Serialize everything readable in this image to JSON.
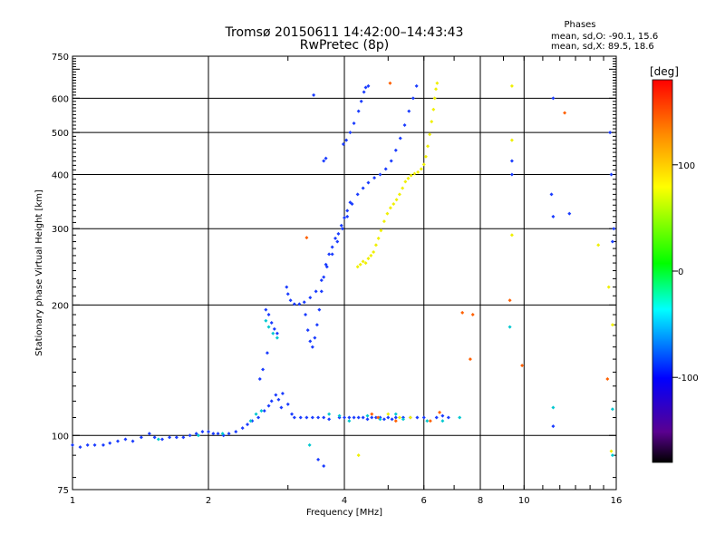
{
  "chart_data": {
    "type": "scatter",
    "title": "Tromsø 20150611 14:42:00–14:43:43",
    "subtitle": "RwPretec (8p)",
    "xlabel": "Frequency [MHz]",
    "ylabel": "Stationary phase Virtual Height [km]",
    "x_scale": "log",
    "y_scale": "log",
    "xlim": [
      1,
      16
    ],
    "ylim": [
      75,
      750
    ],
    "x_ticks": [
      1,
      2,
      4,
      6,
      8,
      10,
      16
    ],
    "x_tick_labels": [
      "1",
      "2",
      "4",
      "6",
      "8",
      "10",
      "16"
    ],
    "y_ticks": [
      75,
      100,
      200,
      300,
      400,
      500,
      600,
      750
    ],
    "y_tick_labels": [
      "75",
      "100",
      "200",
      "300",
      "400",
      "500",
      "600",
      "750"
    ],
    "x_gridlines": [
      2,
      4,
      6,
      8,
      10
    ],
    "y_gridlines": [
      100,
      200,
      300,
      400,
      500,
      600
    ],
    "legend": {
      "title": "Phases",
      "lines": [
        "mean, sd,O: -90.1, 15.6",
        "mean, sd,X:  89.5, 18.6"
      ]
    },
    "colorbar": {
      "label": "[deg]",
      "ticks": [
        100,
        0,
        -100
      ],
      "tick_labels": [
        "100",
        "0",
        "-100"
      ],
      "range": [
        -180,
        180
      ]
    },
    "series": [
      {
        "mode": "O",
        "phase": -100,
        "color": "#1a3cff",
        "points": [
          [
            1.0,
            95
          ],
          [
            1.04,
            94
          ],
          [
            1.08,
            95
          ],
          [
            1.12,
            95
          ],
          [
            1.17,
            95
          ],
          [
            1.21,
            96
          ],
          [
            1.26,
            97
          ],
          [
            1.31,
            98
          ],
          [
            1.36,
            97
          ],
          [
            1.42,
            99
          ],
          [
            1.48,
            101
          ],
          [
            1.52,
            99
          ],
          [
            1.58,
            98
          ],
          [
            1.64,
            99
          ],
          [
            1.7,
            99
          ],
          [
            1.76,
            99
          ],
          [
            1.82,
            100
          ],
          [
            1.88,
            101
          ],
          [
            1.94,
            102
          ],
          [
            2.0,
            102
          ],
          [
            2.05,
            101
          ],
          [
            2.1,
            101
          ],
          [
            2.16,
            100
          ],
          [
            2.22,
            101
          ],
          [
            2.3,
            102
          ],
          [
            2.38,
            104
          ],
          [
            2.44,
            106
          ],
          [
            2.5,
            108
          ],
          [
            2.58,
            110
          ],
          [
            2.66,
            114
          ],
          [
            2.72,
            117
          ],
          [
            2.76,
            120
          ],
          [
            2.82,
            124
          ],
          [
            2.86,
            121
          ],
          [
            2.9,
            116
          ],
          [
            2.6,
            135
          ],
          [
            2.64,
            142
          ],
          [
            2.7,
            155
          ],
          [
            2.68,
            195
          ],
          [
            2.72,
            190
          ],
          [
            2.76,
            182
          ],
          [
            2.8,
            176
          ],
          [
            2.84,
            172
          ],
          [
            2.98,
            220
          ],
          [
            3.0,
            212
          ],
          [
            3.04,
            205
          ],
          [
            3.1,
            201
          ],
          [
            3.18,
            201
          ],
          [
            3.26,
            203
          ],
          [
            3.36,
            208
          ],
          [
            3.46,
            215
          ],
          [
            3.56,
            228
          ],
          [
            3.66,
            245
          ],
          [
            3.76,
            262
          ],
          [
            3.86,
            280
          ],
          [
            3.96,
            300
          ],
          [
            4.06,
            320
          ],
          [
            4.16,
            342
          ],
          [
            4.28,
            360
          ],
          [
            4.4,
            372
          ],
          [
            4.52,
            383
          ],
          [
            4.66,
            393
          ],
          [
            4.8,
            400
          ],
          [
            4.94,
            412
          ],
          [
            5.08,
            430
          ],
          [
            5.2,
            455
          ],
          [
            5.32,
            485
          ],
          [
            5.44,
            520
          ],
          [
            5.56,
            560
          ],
          [
            5.68,
            600
          ],
          [
            5.78,
            640
          ],
          [
            3.28,
            190
          ],
          [
            3.32,
            175
          ],
          [
            3.36,
            165
          ],
          [
            3.4,
            160
          ],
          [
            3.44,
            168
          ],
          [
            3.48,
            180
          ],
          [
            3.52,
            195
          ],
          [
            3.56,
            215
          ],
          [
            3.6,
            232
          ],
          [
            3.64,
            248
          ],
          [
            3.7,
            262
          ],
          [
            3.76,
            272
          ],
          [
            3.82,
            285
          ],
          [
            3.88,
            292
          ],
          [
            3.94,
            305
          ],
          [
            4.0,
            318
          ],
          [
            4.06,
            330
          ],
          [
            4.12,
            345
          ],
          [
            3.6,
            430
          ],
          [
            3.64,
            436
          ],
          [
            3.98,
            470
          ],
          [
            4.04,
            480
          ],
          [
            4.12,
            500
          ],
          [
            4.2,
            525
          ],
          [
            4.3,
            560
          ],
          [
            4.36,
            590
          ],
          [
            4.42,
            620
          ],
          [
            4.46,
            635
          ],
          [
            4.52,
            640
          ],
          [
            3.42,
            610
          ],
          [
            3.1,
            110
          ],
          [
            3.2,
            110
          ],
          [
            3.3,
            110
          ],
          [
            3.4,
            110
          ],
          [
            3.5,
            110
          ],
          [
            3.6,
            110
          ],
          [
            3.7,
            109
          ],
          [
            3.9,
            110
          ],
          [
            4.0,
            110
          ],
          [
            4.1,
            110
          ],
          [
            4.2,
            110
          ],
          [
            4.3,
            110
          ],
          [
            4.4,
            110
          ],
          [
            4.5,
            109
          ],
          [
            4.6,
            110
          ],
          [
            4.7,
            110
          ],
          [
            4.8,
            110
          ],
          [
            4.9,
            109
          ],
          [
            5.0,
            110
          ],
          [
            5.1,
            109
          ],
          [
            5.2,
            110
          ],
          [
            5.4,
            110
          ],
          [
            5.6,
            110
          ],
          [
            5.8,
            110
          ],
          [
            6.0,
            110
          ],
          [
            6.4,
            110
          ],
          [
            6.6,
            111
          ],
          [
            6.8,
            110
          ],
          [
            2.92,
            125
          ],
          [
            3.0,
            118
          ],
          [
            3.06,
            112
          ],
          [
            9.4,
            430
          ],
          [
            9.4,
            400
          ],
          [
            11.6,
            600
          ],
          [
            11.5,
            360
          ],
          [
            11.6,
            320
          ],
          [
            12.6,
            325
          ],
          [
            15.5,
            500
          ],
          [
            15.6,
            400
          ],
          [
            15.8,
            300
          ],
          [
            15.7,
            280
          ],
          [
            11.6,
            105
          ],
          [
            3.5,
            88
          ],
          [
            3.6,
            85
          ]
        ]
      },
      {
        "mode": "X",
        "phase": 90,
        "color": "#f0f000",
        "points": [
          [
            4.28,
            245
          ],
          [
            4.34,
            248
          ],
          [
            4.4,
            252
          ],
          [
            4.46,
            250
          ],
          [
            4.52,
            256
          ],
          [
            4.58,
            260
          ],
          [
            4.64,
            265
          ],
          [
            4.7,
            275
          ],
          [
            4.76,
            285
          ],
          [
            4.82,
            297
          ],
          [
            4.9,
            312
          ],
          [
            4.98,
            325
          ],
          [
            5.06,
            335
          ],
          [
            5.14,
            342
          ],
          [
            5.22,
            350
          ],
          [
            5.3,
            360
          ],
          [
            5.38,
            372
          ],
          [
            5.46,
            385
          ],
          [
            5.54,
            392
          ],
          [
            5.62,
            398
          ],
          [
            5.72,
            402
          ],
          [
            5.82,
            405
          ],
          [
            5.92,
            412
          ],
          [
            6.0,
            422
          ],
          [
            6.06,
            440
          ],
          [
            6.12,
            465
          ],
          [
            6.18,
            495
          ],
          [
            6.24,
            530
          ],
          [
            6.3,
            565
          ],
          [
            6.34,
            600
          ],
          [
            6.38,
            630
          ],
          [
            6.42,
            650
          ],
          [
            5.0,
            112
          ],
          [
            5.3,
            110
          ],
          [
            5.6,
            110
          ],
          [
            9.4,
            640
          ],
          [
            9.4,
            480
          ],
          [
            9.4,
            290
          ],
          [
            14.6,
            275
          ],
          [
            15.4,
            220
          ],
          [
            15.7,
            180
          ],
          [
            15.6,
            92
          ],
          [
            4.3,
            90
          ]
        ]
      },
      {
        "mode": "other",
        "phase": 0,
        "color": "#00c8d0",
        "points": [
          [
            1.55,
            98
          ],
          [
            1.9,
            100
          ],
          [
            2.15,
            101
          ],
          [
            2.48,
            108
          ],
          [
            2.55,
            112
          ],
          [
            2.62,
            114
          ],
          [
            2.68,
            184
          ],
          [
            2.72,
            178
          ],
          [
            2.78,
            172
          ],
          [
            2.84,
            168
          ],
          [
            3.35,
            95
          ],
          [
            3.7,
            112
          ],
          [
            3.9,
            111
          ],
          [
            4.1,
            108
          ],
          [
            4.5,
            111
          ],
          [
            4.8,
            109
          ],
          [
            5.2,
            112
          ],
          [
            5.4,
            109
          ],
          [
            6.1,
            108
          ],
          [
            6.6,
            108
          ],
          [
            7.2,
            110
          ],
          [
            11.6,
            116
          ],
          [
            15.7,
            115
          ],
          [
            15.7,
            90
          ],
          [
            9.3,
            178
          ]
        ]
      },
      {
        "mode": "other",
        "phase": 150,
        "color": "#ff6000",
        "points": [
          [
            3.3,
            286
          ],
          [
            5.05,
            650
          ],
          [
            5.2,
            108
          ],
          [
            6.2,
            108
          ],
          [
            6.5,
            113
          ],
          [
            7.7,
            190
          ],
          [
            7.3,
            192
          ],
          [
            7.6,
            150
          ],
          [
            9.3,
            205
          ],
          [
            9.9,
            145
          ],
          [
            12.3,
            555
          ],
          [
            15.3,
            135
          ],
          [
            4.6,
            112
          ],
          [
            4.75,
            110
          ]
        ]
      }
    ]
  }
}
